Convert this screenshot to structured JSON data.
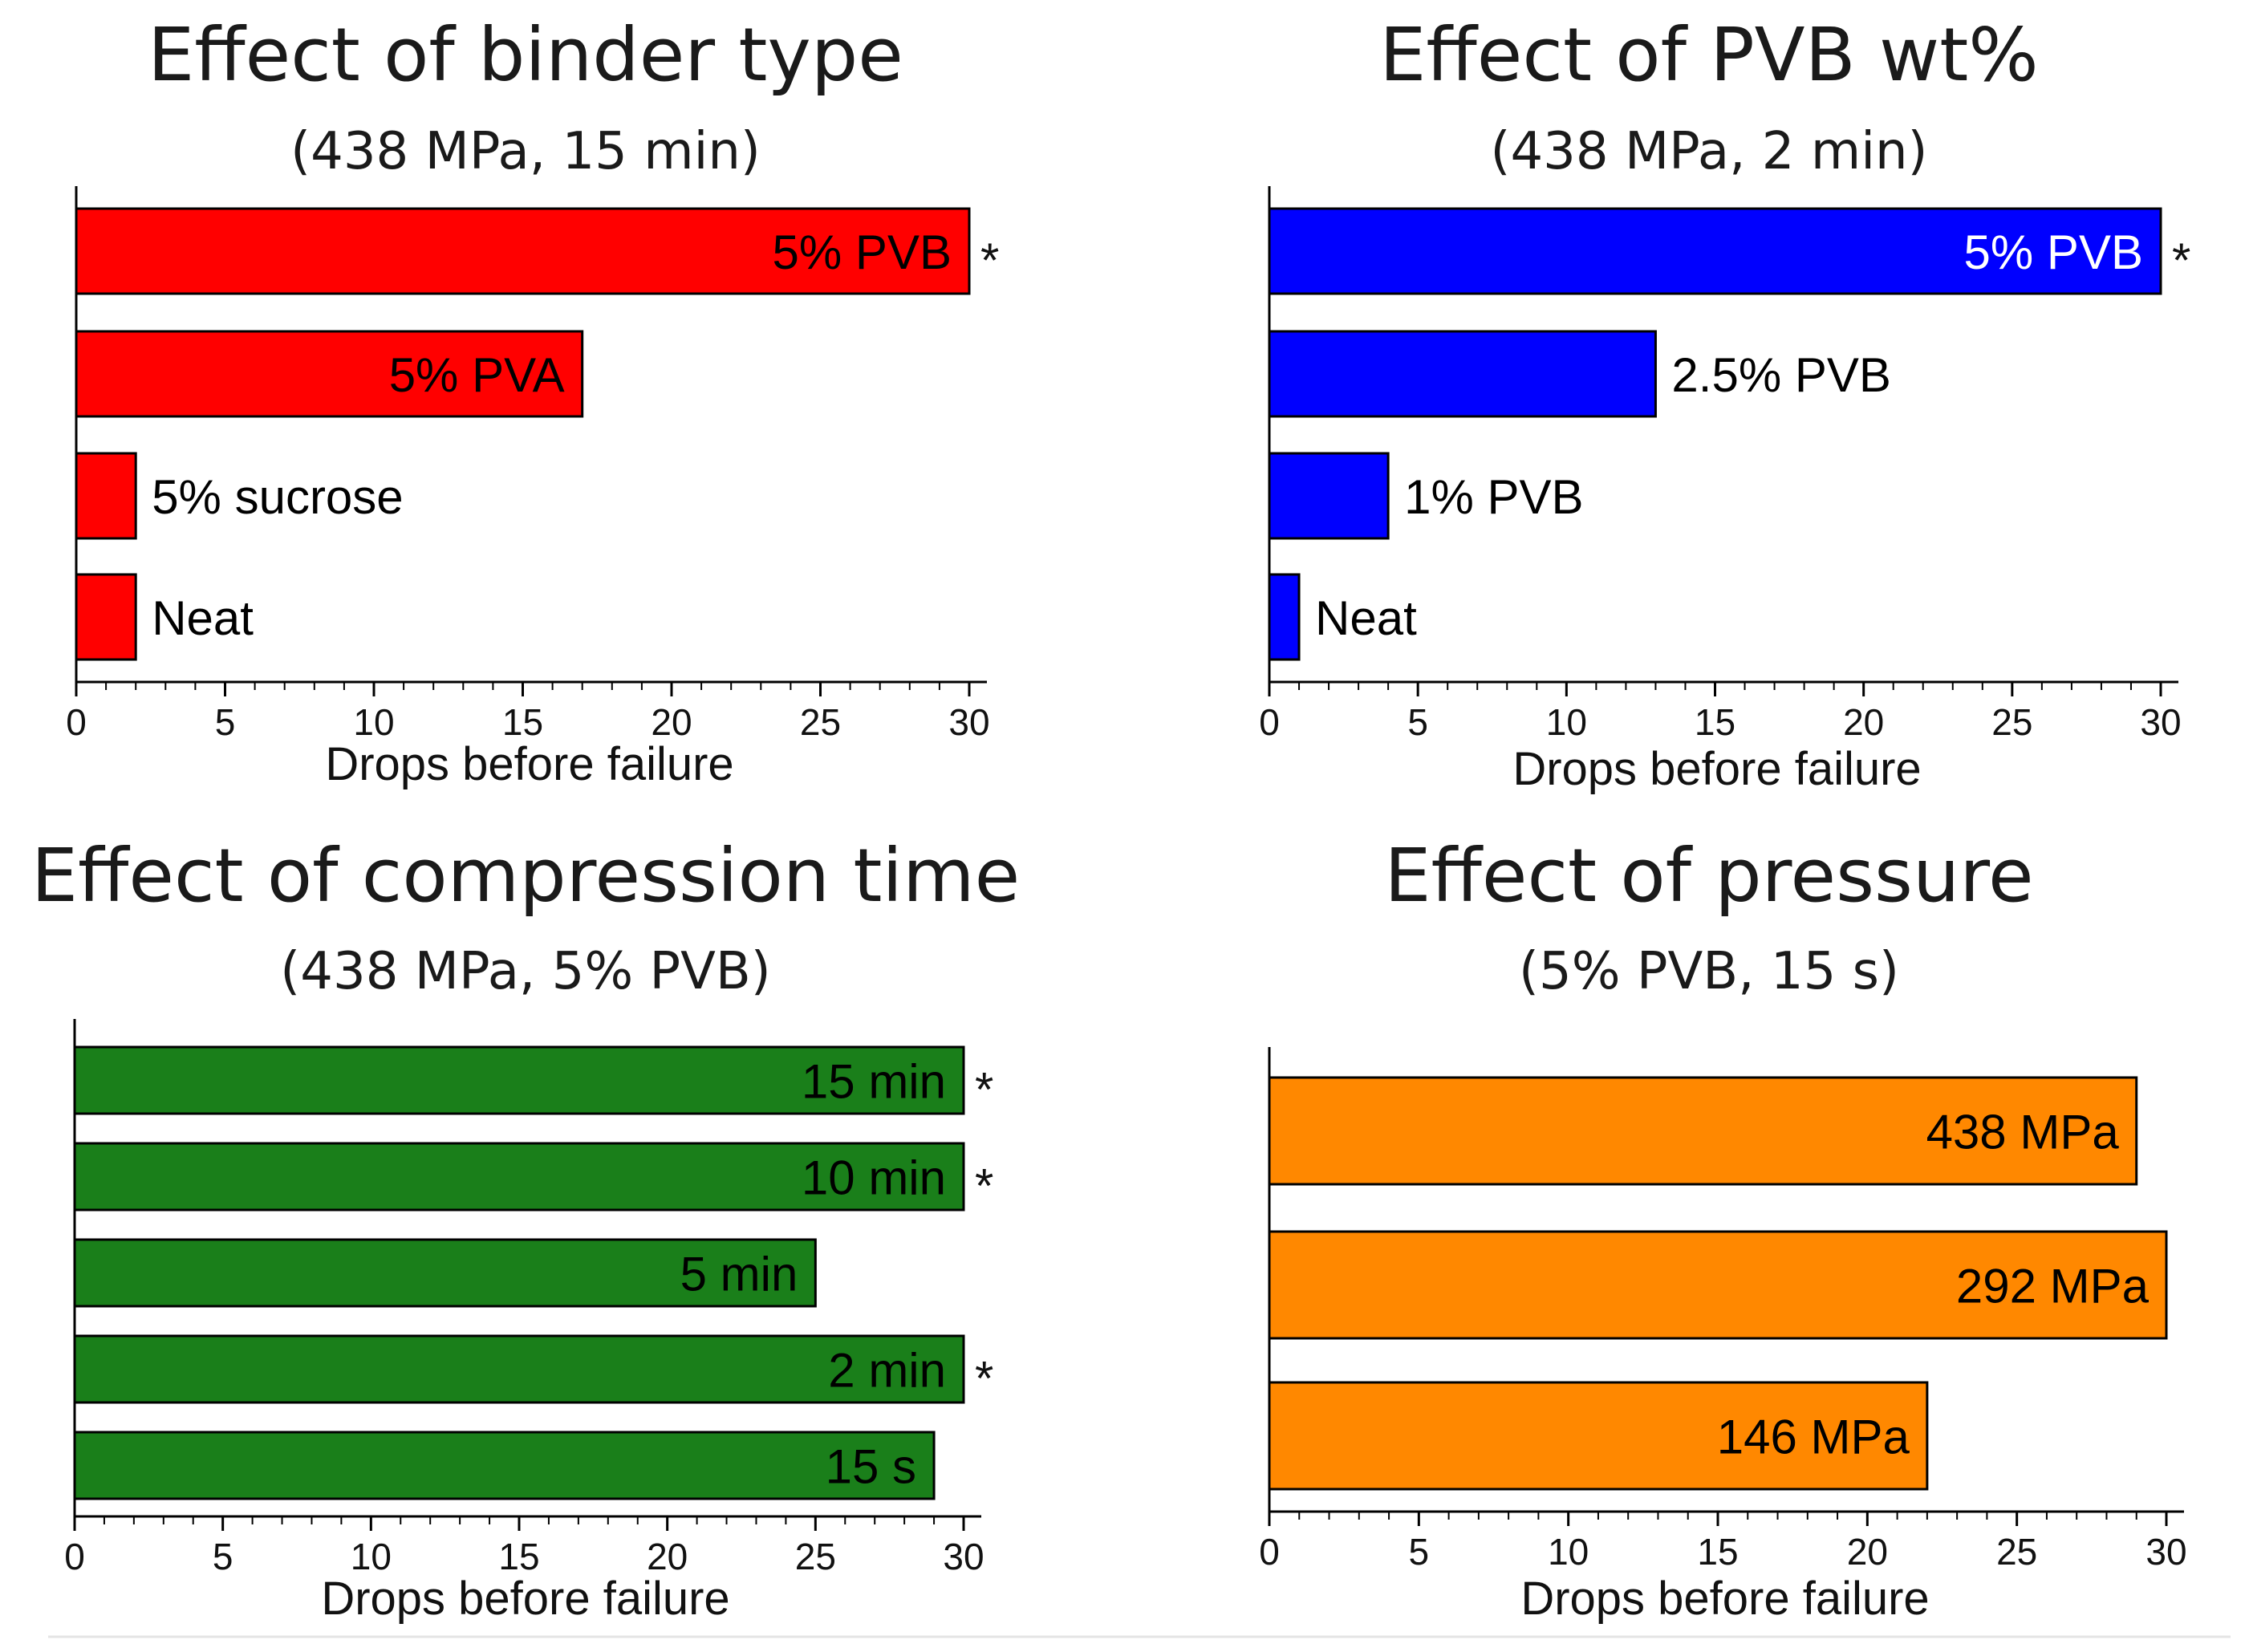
{
  "chart_data": [
    {
      "type": "bar",
      "orientation": "horizontal",
      "title": "Effect of binder type",
      "subtitle": "(438 MPa, 15 min)",
      "xlabel": "Drops before failure",
      "xlim": [
        0,
        30
      ],
      "xticks": [
        "0",
        "5",
        "10",
        "15",
        "20",
        "25",
        "30"
      ],
      "color": "#ff0000",
      "bars": [
        {
          "label": "5% PVB",
          "value": 30,
          "star": true,
          "label_position": "inside",
          "label_color": "#000000"
        },
        {
          "label": "5% PVA",
          "value": 17,
          "star": false,
          "label_position": "inside",
          "label_color": "#000000"
        },
        {
          "label": "5% sucrose",
          "value": 2,
          "star": false,
          "label_position": "outside",
          "label_color": "#000000"
        },
        {
          "label": "Neat",
          "value": 2,
          "star": false,
          "label_position": "outside",
          "label_color": "#000000"
        }
      ]
    },
    {
      "type": "bar",
      "orientation": "horizontal",
      "title": "Effect of PVB wt%",
      "subtitle": "(438 MPa, 2 min)",
      "xlabel": "Drops before failure",
      "xlim": [
        0,
        30
      ],
      "xticks": [
        "0",
        "5",
        "10",
        "15",
        "20",
        "25",
        "30"
      ],
      "color": "#0000ff",
      "bars": [
        {
          "label": "5% PVB",
          "value": 30,
          "star": true,
          "label_position": "inside",
          "label_color": "#ffffff"
        },
        {
          "label": "2.5% PVB",
          "value": 13,
          "star": false,
          "label_position": "outside",
          "label_color": "#000000"
        },
        {
          "label": "1% PVB",
          "value": 4,
          "star": false,
          "label_position": "outside",
          "label_color": "#000000"
        },
        {
          "label": "Neat",
          "value": 1,
          "star": false,
          "label_position": "outside",
          "label_color": "#000000"
        }
      ]
    },
    {
      "type": "bar",
      "orientation": "horizontal",
      "title": "Effect of compression time",
      "subtitle": "(438 MPa, 5% PVB)",
      "xlabel": "Drops before failure",
      "xlim": [
        0,
        30
      ],
      "xticks": [
        "0",
        "5",
        "10",
        "15",
        "20",
        "25",
        "30"
      ],
      "color": "#1a7f1a",
      "bars": [
        {
          "label": "15 min",
          "value": 30,
          "star": true,
          "label_position": "inside",
          "label_color": "#000000"
        },
        {
          "label": "10 min",
          "value": 30,
          "star": true,
          "label_position": "inside",
          "label_color": "#000000"
        },
        {
          "label": "5 min",
          "value": 25,
          "star": false,
          "label_position": "inside",
          "label_color": "#000000"
        },
        {
          "label": "2 min",
          "value": 30,
          "star": true,
          "label_position": "inside",
          "label_color": "#000000"
        },
        {
          "label": "15 s",
          "value": 29,
          "star": false,
          "label_position": "inside",
          "label_color": "#000000"
        }
      ]
    },
    {
      "type": "bar",
      "orientation": "horizontal",
      "title": "Effect of pressure",
      "subtitle": "(5% PVB, 15 s)",
      "xlabel": "Drops before failure",
      "xlim": [
        0,
        30
      ],
      "xticks": [
        "0",
        "5",
        "10",
        "15",
        "20",
        "25",
        "30"
      ],
      "color": "#ff8800",
      "bars": [
        {
          "label": "438 MPa",
          "value": 29,
          "star": false,
          "label_position": "inside",
          "label_color": "#000000"
        },
        {
          "label": "292 MPa",
          "value": 30,
          "star": false,
          "label_position": "inside",
          "label_color": "#000000"
        },
        {
          "label": "146 MPa",
          "value": 22,
          "star": false,
          "label_position": "inside",
          "label_color": "#000000"
        }
      ]
    }
  ],
  "star_symbol": "*"
}
